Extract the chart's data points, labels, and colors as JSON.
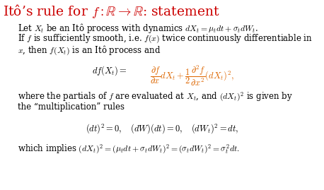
{
  "title": "Itô’s rule for $f : \\mathbb{R} \\rightarrow \\mathbb{R}$: statement",
  "title_color": "#cc0000",
  "body_color": "#000000",
  "math_color": "#dd6600",
  "bg_color": "#ffffff",
  "line1": "Let $X_t$ be an Itô process with dynamics $dX_t = \\mu_t dt + \\sigma_t dW_t$.",
  "line2": "If $f$ is sufficiently smooth, i.e. $f(x)$ twice continuously differentiable in",
  "line3": "$x$, then $f(X_t)$ is an Itô process and",
  "line4": "where the partials of $f$ are evaluated at $X_t$, and $(dX_t)^2$ is given by",
  "line5": "the “multiplication” rules",
  "formula2_black": "$(dt)^2 = 0, \\quad (dW)(dt) = 0, \\quad (dW_t)^2 = dt,$",
  "line6": "which implies $(dX_t)^2 = (\\mu_t dt + \\sigma_t dW_t)^2 = (\\sigma_t dW_t)^2 = \\sigma_t^2 dt.$"
}
